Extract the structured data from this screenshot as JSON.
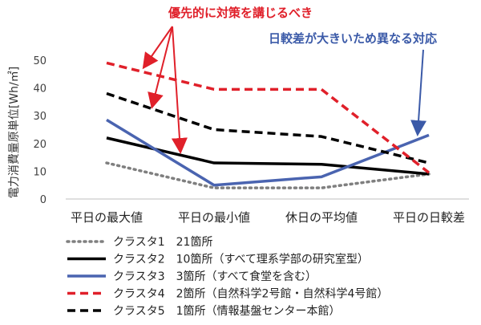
{
  "chart_data": {
    "type": "line",
    "ylabel": "電力消費量原単位[Wh/㎡]",
    "ylim": [
      0,
      50
    ],
    "yticks": [
      0,
      10,
      20,
      30,
      40,
      50
    ],
    "grid": false,
    "categories": [
      "平日の最大値",
      "平日の最小値",
      "休日の平均値",
      "平日の日較差"
    ],
    "series": [
      {
        "name": "クラスタ1　21箇所",
        "color": "#7f7f7f",
        "dash": "dotted",
        "values": [
          13,
          4,
          4,
          9
        ]
      },
      {
        "name": "クラスタ2　10箇所（すべて理系学部の研究室型）",
        "color": "#000000",
        "dash": "solid",
        "values": [
          22,
          13,
          12.5,
          9
        ]
      },
      {
        "name": "クラスタ3　3箇所（すべて食堂を含む）",
        "color": "#4a64b0",
        "dash": "solid",
        "values": [
          28.5,
          5,
          8,
          23
        ]
      },
      {
        "name": "クラスタ4　2箇所（自然科学2号館・自然科学4号館）",
        "color": "#e0202a",
        "dash": "dashed",
        "values": [
          49,
          39.5,
          39.5,
          9.5
        ]
      },
      {
        "name": "クラスタ5　1箇所（情報基盤センター本館）",
        "color": "#000000",
        "dash": "dashed",
        "values": [
          38,
          25,
          22.5,
          13
        ]
      }
    ],
    "legend_position": "bottom",
    "annotations": [
      {
        "text": "優先的に対策を講じるべき",
        "color": "#e0202a"
      },
      {
        "text": "日較差が大きいため異なる対応",
        "color": "#3b5aa8"
      }
    ]
  }
}
